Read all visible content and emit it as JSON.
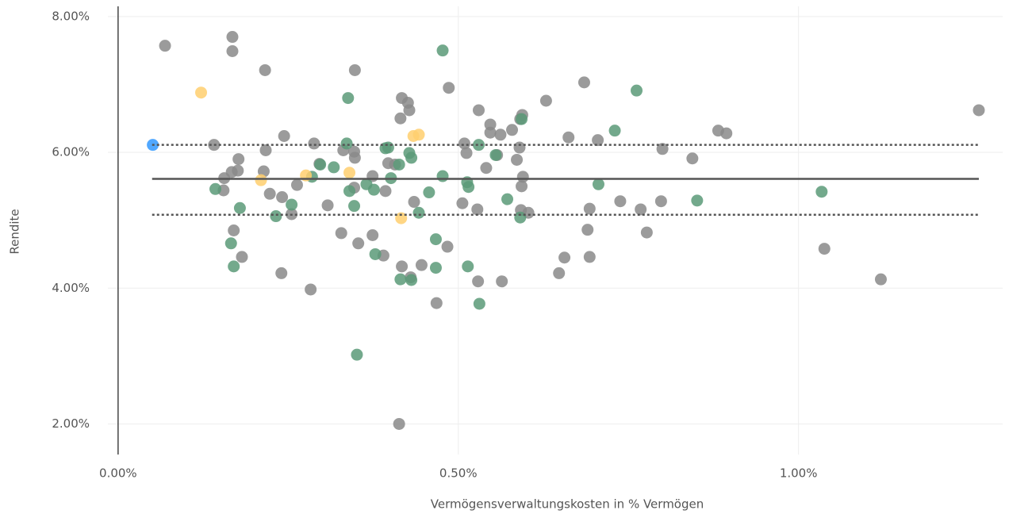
{
  "chart_data": {
    "type": "scatter",
    "xlabel": "Vermögensverwaltungskosten in % Vermögen",
    "ylabel": "Rendite",
    "xlim": [
      -0.015,
      1.3
    ],
    "ylim": [
      1.55,
      8.15
    ],
    "xticks": [
      {
        "value": 0,
        "label": "0.00%"
      },
      {
        "value": 0.5,
        "label": "0.50%"
      },
      {
        "value": 1,
        "label": "1.00%"
      }
    ],
    "yticks": [
      {
        "value": 2,
        "label": "2.00%"
      },
      {
        "value": 4,
        "label": "4.00%"
      },
      {
        "value": 6,
        "label": "6.00%"
      },
      {
        "value": 8,
        "label": "8.00%"
      }
    ],
    "grid": true,
    "reference_lines": [
      {
        "value": 5.61,
        "dashed": false,
        "x_range": [
          0.05,
          1.265
        ]
      },
      {
        "value": 6.11,
        "dashed": true,
        "x_range": [
          0.05,
          1.265
        ]
      },
      {
        "value": 5.08,
        "dashed": true,
        "x_range": [
          0.05,
          1.265
        ]
      }
    ],
    "series": [
      {
        "color": "#8a8a8a",
        "x": [
          0.069,
          0.168,
          0.168,
          0.216,
          0.348,
          0.141,
          0.156,
          0.155,
          0.167,
          0.176,
          0.177,
          0.17,
          0.182,
          0.217,
          0.214,
          0.223,
          0.244,
          0.241,
          0.24,
          0.255,
          0.263,
          0.283,
          0.288,
          0.296,
          0.308,
          0.328,
          0.331,
          0.347,
          0.348,
          0.347,
          0.353,
          0.374,
          0.374,
          0.39,
          0.393,
          0.397,
          0.407,
          0.415,
          0.417,
          0.426,
          0.428,
          0.417,
          0.43,
          0.435,
          0.446,
          0.413,
          0.468,
          0.484,
          0.486,
          0.506,
          0.509,
          0.512,
          0.53,
          0.528,
          0.529,
          0.541,
          0.547,
          0.547,
          0.557,
          0.562,
          0.564,
          0.579,
          0.586,
          0.59,
          0.591,
          0.594,
          0.593,
          0.595,
          0.592,
          0.603,
          0.629,
          0.648,
          0.656,
          0.662,
          0.685,
          0.69,
          0.693,
          0.693,
          0.705,
          0.738,
          0.768,
          0.777,
          0.798,
          0.8,
          0.844,
          0.882,
          0.894,
          1.038,
          1.121,
          1.265
        ],
        "values": [
          7.57,
          7.7,
          7.49,
          7.21,
          7.21,
          6.11,
          5.62,
          5.44,
          5.71,
          5.73,
          5.9,
          4.85,
          4.46,
          6.03,
          5.72,
          5.39,
          6.24,
          5.34,
          4.22,
          5.09,
          5.52,
          3.98,
          6.13,
          5.83,
          5.22,
          4.81,
          6.03,
          6.01,
          5.92,
          5.48,
          4.66,
          5.65,
          4.78,
          4.48,
          5.43,
          5.84,
          5.82,
          6.5,
          6.8,
          6.73,
          6.62,
          4.32,
          4.16,
          5.27,
          4.34,
          2.0,
          3.78,
          4.61,
          6.95,
          5.25,
          6.13,
          5.99,
          6.62,
          5.16,
          4.1,
          5.77,
          6.41,
          6.29,
          5.96,
          6.26,
          4.1,
          6.33,
          5.89,
          6.07,
          6.49,
          6.55,
          5.5,
          5.64,
          5.15,
          5.11,
          6.76,
          4.22,
          4.45,
          6.22,
          7.03,
          4.86,
          5.17,
          4.46,
          6.18,
          5.28,
          5.16,
          4.82,
          5.28,
          6.05,
          5.91,
          6.32,
          6.28,
          4.58,
          4.13,
          6.62
        ]
      },
      {
        "color": "#5a9a78",
        "x": [
          0.477,
          0.338,
          0.762,
          0.73,
          0.336,
          0.393,
          0.397,
          0.428,
          0.431,
          0.53,
          0.555,
          0.593,
          0.317,
          0.297,
          0.285,
          0.34,
          0.365,
          0.376,
          0.401,
          0.413,
          0.477,
          0.513,
          0.515,
          0.457,
          0.442,
          0.347,
          0.255,
          0.232,
          0.179,
          0.143,
          0.166,
          0.17,
          0.378,
          0.415,
          0.431,
          0.467,
          0.467,
          0.514,
          0.531,
          0.572,
          0.591,
          0.706,
          0.851,
          1.034,
          0.351
        ],
        "values": [
          7.5,
          6.8,
          6.91,
          6.32,
          6.13,
          6.06,
          6.07,
          5.99,
          5.92,
          6.11,
          5.96,
          6.49,
          5.78,
          5.82,
          5.64,
          5.43,
          5.53,
          5.45,
          5.62,
          5.82,
          5.65,
          5.56,
          5.49,
          5.41,
          5.11,
          5.21,
          5.23,
          5.06,
          5.18,
          5.46,
          4.66,
          4.32,
          4.5,
          4.13,
          4.12,
          4.72,
          4.3,
          4.32,
          3.77,
          5.31,
          5.04,
          5.53,
          5.29,
          5.42,
          3.02
        ]
      },
      {
        "color": "#ffcf6e",
        "x": [
          0.122,
          0.21,
          0.276,
          0.34,
          0.434,
          0.442,
          0.416
        ],
        "values": [
          6.88,
          5.59,
          5.66,
          5.7,
          6.24,
          6.26,
          5.03
        ]
      },
      {
        "color": "#3399ff",
        "x": [
          0.051
        ],
        "values": [
          6.11
        ]
      }
    ]
  }
}
